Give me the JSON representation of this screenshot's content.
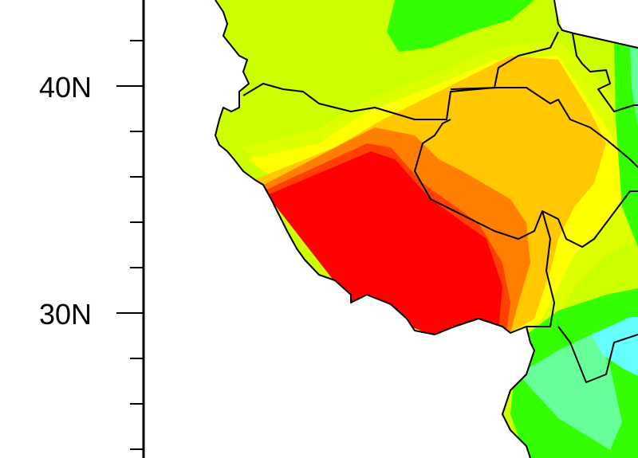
{
  "map": {
    "axis": {
      "y_tick_labels": [
        "40N",
        "30N"
      ],
      "y_tick_values_deg": [
        40,
        30
      ],
      "minor_tick_step_deg": 2
    },
    "colors": {
      "background": "#ffffff",
      "land_base": "#ccff00",
      "band_light_yellow": "#ddff00",
      "band_yellow": "#ffff00",
      "band_amber": "#ffc800",
      "band_orange": "#ff8000",
      "band_red_orange": "#ff4000",
      "band_red": "#ff0000",
      "band_green": "#33ff00",
      "band_light_green": "#66ff99",
      "band_cyan": "#66ffff",
      "boundary": "#000000"
    }
  }
}
